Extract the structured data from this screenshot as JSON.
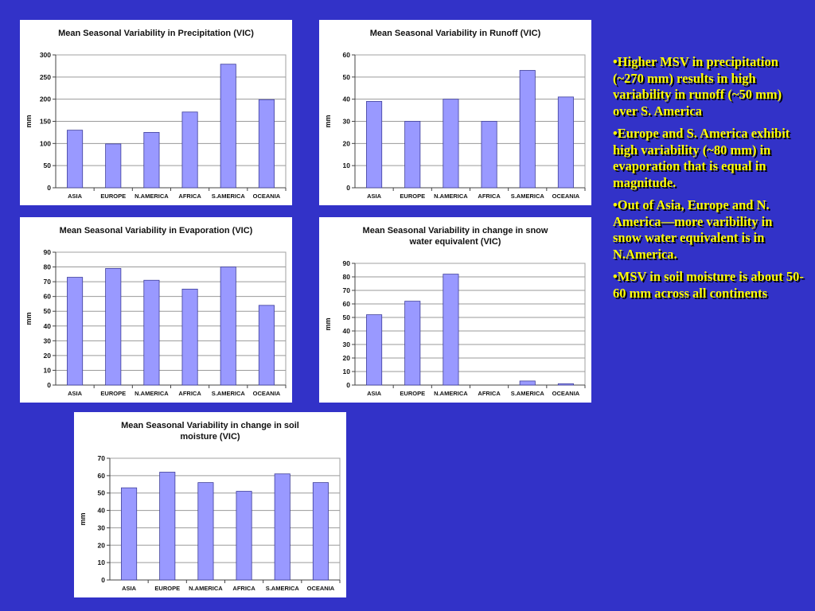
{
  "chart_data": [
    {
      "type": "bar",
      "title": "Mean Seasonal Variability in Precipitation (VIC)",
      "ylabel": "mm",
      "categories": [
        "ASIA",
        "EUROPE",
        "N.AMERICA",
        "AFRICA",
        "S.AMERICA",
        "OCEANIA"
      ],
      "values": [
        130,
        99,
        125,
        171,
        279,
        199
      ],
      "ylim": [
        0,
        300
      ],
      "yticks": [
        0,
        50,
        100,
        150,
        200,
        250,
        300
      ],
      "grid": true,
      "colors": {
        "bar": "#9999ff",
        "bar_edge": "#3e3e9a"
      }
    },
    {
      "type": "bar",
      "title": "Mean Seasonal Variability in Runoff (VIC)",
      "ylabel": "mm",
      "categories": [
        "ASIA",
        "EUROPE",
        "N.AMERICA",
        "AFRICA",
        "S.AMERICA",
        "OCEANIA"
      ],
      "values": [
        39,
        30,
        40,
        30,
        53,
        41
      ],
      "ylim": [
        0,
        60
      ],
      "yticks": [
        0,
        10,
        20,
        30,
        40,
        50,
        60
      ],
      "grid": true,
      "colors": {
        "bar": "#9999ff",
        "bar_edge": "#3e3e9a"
      }
    },
    {
      "type": "bar",
      "title": "Mean Seasonal Variability in Evaporation (VIC)",
      "ylabel": "mm",
      "categories": [
        "ASIA",
        "EUROPE",
        "N.AMERICA",
        "AFRICA",
        "S.AMERICA",
        "OCEANIA"
      ],
      "values": [
        73,
        79,
        71,
        65,
        80,
        54
      ],
      "ylim": [
        0,
        90
      ],
      "yticks": [
        0,
        10,
        20,
        30,
        40,
        50,
        60,
        70,
        80,
        90
      ],
      "grid": true,
      "colors": {
        "bar": "#9999ff",
        "bar_edge": "#3e3e9a"
      }
    },
    {
      "type": "bar",
      "title": "Mean Seasonal Variability in change in snow\nwater equivalent (VIC)",
      "ylabel": "mm",
      "categories": [
        "ASIA",
        "EUROPE",
        "N.AMERICA",
        "AFRICA",
        "S.AMERICA",
        "OCEANIA"
      ],
      "values": [
        52,
        62,
        82,
        0,
        3,
        1
      ],
      "ylim": [
        0,
        90
      ],
      "yticks": [
        0,
        10,
        20,
        30,
        40,
        50,
        60,
        70,
        80,
        90
      ],
      "grid": true,
      "colors": {
        "bar": "#9999ff",
        "bar_edge": "#3e3e9a"
      }
    },
    {
      "type": "bar",
      "title": "Mean Seasonal Variability in change in soil\nmoisture (VIC)",
      "ylabel": "mm",
      "categories": [
        "ASIA",
        "EUROPE",
        "N.AMERICA",
        "AFRICA",
        "S.AMERICA",
        "OCEANIA"
      ],
      "values": [
        53,
        62,
        56,
        51,
        61,
        56
      ],
      "ylim": [
        0,
        70
      ],
      "yticks": [
        0,
        10,
        20,
        30,
        40,
        50,
        60,
        70
      ],
      "grid": true,
      "colors": {
        "bar": "#9999ff",
        "bar_edge": "#3e3e9a"
      }
    }
  ],
  "bullets": [
    "Higher MSV in precipitation (~270 mm) results in high variability in runoff (~50 mm)  over S. America",
    "Europe and S. America exhibit high variability (~80 mm) in evaporation that is equal in magnitude.",
    "Out of Asia, Europe and N. America—more varibility in snow water equivalent is in N.America.",
    "MSV in soil moisture is about 50-60 mm across all continents"
  ],
  "colors": {
    "background": "#3232c8",
    "bullet_text": "#ffff00"
  }
}
